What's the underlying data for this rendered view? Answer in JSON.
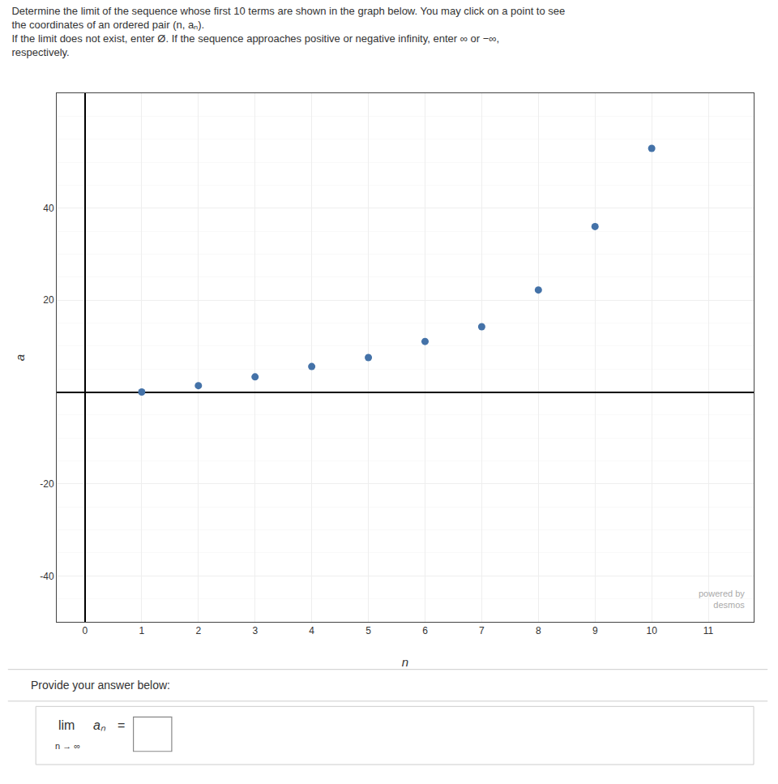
{
  "chart_data": {
    "type": "scatter",
    "title": "Determine the limit of the sequence whose first 10 terms are shown in the graph below. You may click on a point to see the coordinates of an ordered pair (n, aₙ).",
    "subtitle": "If the limit does not exist, enter Ø. If the sequence approaches positive or negative infinity, enter ∞ or −∞, respectively.",
    "x_label": "n",
    "y_label": "a",
    "x": [
      1,
      2,
      3,
      4,
      5,
      6,
      7,
      8,
      9,
      10
    ],
    "values": [
      0.0,
      1.386,
      3.296,
      5.545,
      7.5,
      11.0,
      14.2,
      22.2,
      36.0,
      53.0
    ],
    "color": "#4472a8",
    "xlim": [
      -0.5,
      11.8
    ],
    "ylim": [
      -50,
      65
    ],
    "xticks": [
      0,
      1,
      2,
      3,
      4,
      5,
      6,
      7,
      8,
      9,
      10,
      11
    ],
    "yticks": [
      -40,
      -20,
      20,
      40
    ],
    "grid": true,
    "annotations": [
      "powered by",
      "desmos",
      "Provide your answer below:",
      "lim",
      "n → ∞",
      "aₙ",
      "="
    ]
  }
}
